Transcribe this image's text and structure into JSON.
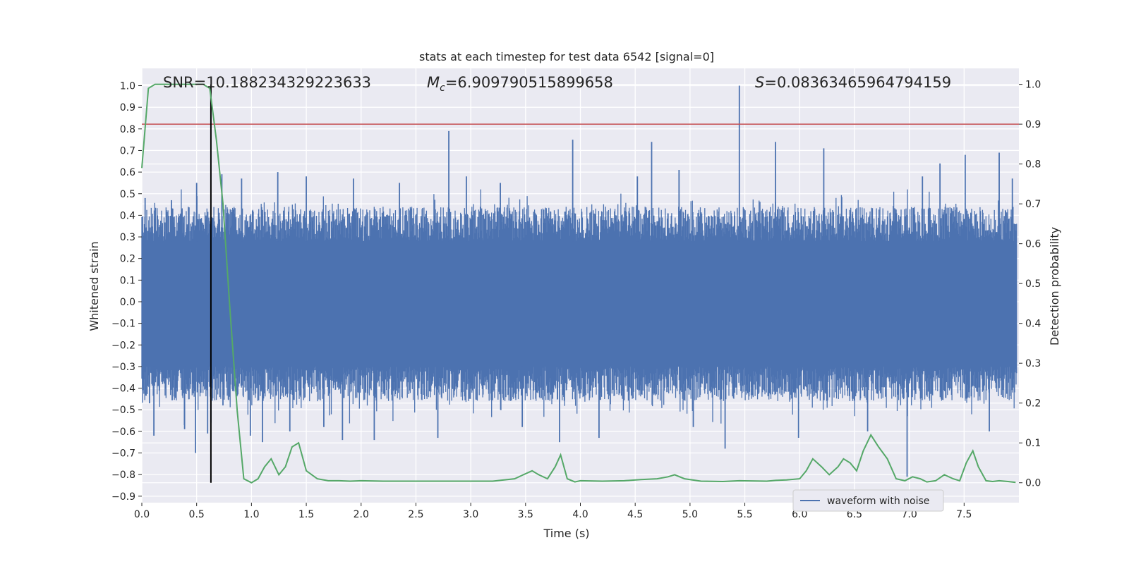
{
  "chart_data": {
    "type": "line",
    "title": "stats at each timestep for test data 6542 [signal=0]",
    "xlabel": "Time (s)",
    "ylabel_left": "Whitened strain",
    "ylabel_right": "Detection probability",
    "xlim": [
      0.0,
      8.0
    ],
    "ylim_left": [
      -0.93,
      1.08
    ],
    "ylim_right": [
      -0.05,
      1.04
    ],
    "x_ticks": [
      "0.0",
      "0.5",
      "1.0",
      "1.5",
      "2.0",
      "2.5",
      "3.0",
      "3.5",
      "4.0",
      "4.5",
      "5.0",
      "5.5",
      "6.0",
      "6.5",
      "7.0",
      "7.5"
    ],
    "y_left_ticks": [
      "1.0",
      "0.9",
      "0.8",
      "0.7",
      "0.6",
      "0.5",
      "0.4",
      "0.3",
      "0.2",
      "0.1",
      "0.0",
      "−0.1",
      "−0.2",
      "−0.3",
      "−0.4",
      "−0.5",
      "−0.6",
      "−0.7",
      "−0.8",
      "−0.9"
    ],
    "y_right_ticks": [
      "1.0",
      "0.9",
      "0.8",
      "0.7",
      "0.6",
      "0.5",
      "0.4",
      "0.3",
      "0.2",
      "0.1",
      "0.0"
    ],
    "grid": true,
    "legend": {
      "placement": "lower-right",
      "entries": [
        "waveform with noise"
      ]
    },
    "annotations": {
      "snr_label": "SNR=10.188234329223633",
      "mc_symbol": "M",
      "mc_subscript": "c",
      "mc_value": "=6.909790515899658",
      "s_symbol": "S",
      "s_value": "=0.08363465964794159"
    },
    "threshold_right_axis": 0.9,
    "marker_time": 0.63,
    "waveform": {
      "name": "waveform with noise",
      "color": "#4c72b0",
      "core_band": [
        -0.3,
        0.28
      ],
      "spikes": [
        [
          0.03,
          0.48
        ],
        [
          0.07,
          -0.47
        ],
        [
          0.11,
          -0.62
        ],
        [
          0.27,
          0.47
        ],
        [
          0.39,
          -0.59
        ],
        [
          0.49,
          -0.7
        ],
        [
          0.5,
          0.55
        ],
        [
          0.6,
          -0.61
        ],
        [
          0.63,
          -0.56
        ],
        [
          0.73,
          0.59
        ],
        [
          0.74,
          -0.48
        ],
        [
          0.91,
          0.57
        ],
        [
          0.99,
          -0.62
        ],
        [
          1.1,
          -0.65
        ],
        [
          1.24,
          0.6
        ],
        [
          1.35,
          -0.6
        ],
        [
          1.5,
          0.58
        ],
        [
          1.66,
          -0.58
        ],
        [
          1.83,
          -0.64
        ],
        [
          1.93,
          0.57
        ],
        [
          2.12,
          -0.64
        ],
        [
          2.35,
          0.55
        ],
        [
          2.7,
          -0.63
        ],
        [
          2.8,
          0.79
        ],
        [
          2.96,
          0.58
        ],
        [
          3.27,
          0.55
        ],
        [
          3.47,
          -0.58
        ],
        [
          3.81,
          -0.65
        ],
        [
          3.93,
          0.75
        ],
        [
          4.17,
          -0.63
        ],
        [
          4.52,
          0.58
        ],
        [
          4.65,
          0.74
        ],
        [
          4.9,
          0.61
        ],
        [
          5.03,
          -0.58
        ],
        [
          5.32,
          -0.68
        ],
        [
          5.45,
          1.0
        ],
        [
          5.78,
          0.74
        ],
        [
          5.99,
          -0.63
        ],
        [
          6.22,
          0.71
        ],
        [
          6.62,
          -0.6
        ],
        [
          6.98,
          -0.81
        ],
        [
          7.12,
          0.58
        ],
        [
          7.28,
          0.64
        ],
        [
          7.51,
          0.68
        ],
        [
          7.73,
          -0.6
        ],
        [
          7.82,
          0.69
        ],
        [
          7.94,
          0.57
        ]
      ]
    },
    "detection_probability": {
      "color": "#55a868",
      "x": [
        0.0,
        0.06,
        0.12,
        0.2,
        0.3,
        0.4,
        0.5,
        0.56,
        0.62,
        0.68,
        0.74,
        0.8,
        0.87,
        0.93,
        1.0,
        1.06,
        1.12,
        1.18,
        1.25,
        1.31,
        1.37,
        1.43,
        1.5,
        1.6,
        1.7,
        1.8,
        1.9,
        2.0,
        2.2,
        2.5,
        2.8,
        3.0,
        3.2,
        3.4,
        3.48,
        3.56,
        3.62,
        3.7,
        3.77,
        3.82,
        3.88,
        3.95,
        4.0,
        4.2,
        4.4,
        4.55,
        4.7,
        4.8,
        4.86,
        4.95,
        5.1,
        5.3,
        5.45,
        5.7,
        5.78,
        5.88,
        6.0,
        6.06,
        6.12,
        6.2,
        6.27,
        6.35,
        6.4,
        6.46,
        6.52,
        6.58,
        6.65,
        6.72,
        6.8,
        6.88,
        6.96,
        7.03,
        7.1,
        7.16,
        7.24,
        7.32,
        7.4,
        7.46,
        7.52,
        7.58,
        7.63,
        7.7,
        7.76,
        7.82,
        7.9,
        7.97
      ],
      "values": [
        0.79,
        0.99,
        1.0,
        1.0,
        1.0,
        1.0,
        1.0,
        1.0,
        0.99,
        0.86,
        0.7,
        0.45,
        0.18,
        0.01,
        0.0,
        0.01,
        0.04,
        0.06,
        0.02,
        0.04,
        0.09,
        0.1,
        0.03,
        0.01,
        0.005,
        0.005,
        0.004,
        0.005,
        0.004,
        0.004,
        0.004,
        0.004,
        0.004,
        0.01,
        0.02,
        0.03,
        0.02,
        0.01,
        0.04,
        0.07,
        0.01,
        0.002,
        0.005,
        0.004,
        0.005,
        0.008,
        0.01,
        0.015,
        0.02,
        0.01,
        0.004,
        0.003,
        0.005,
        0.004,
        0.006,
        0.007,
        0.01,
        0.03,
        0.06,
        0.04,
        0.02,
        0.04,
        0.06,
        0.05,
        0.03,
        0.08,
        0.12,
        0.09,
        0.06,
        0.01,
        0.005,
        0.015,
        0.01,
        0.002,
        0.005,
        0.02,
        0.01,
        0.005,
        0.05,
        0.08,
        0.04,
        0.005,
        0.003,
        0.005,
        0.003,
        0.001
      ]
    },
    "colors": {
      "background": "#eaeaf2",
      "grid": "#ffffff",
      "threshold": "#c44e52",
      "marker": "#000000"
    }
  }
}
